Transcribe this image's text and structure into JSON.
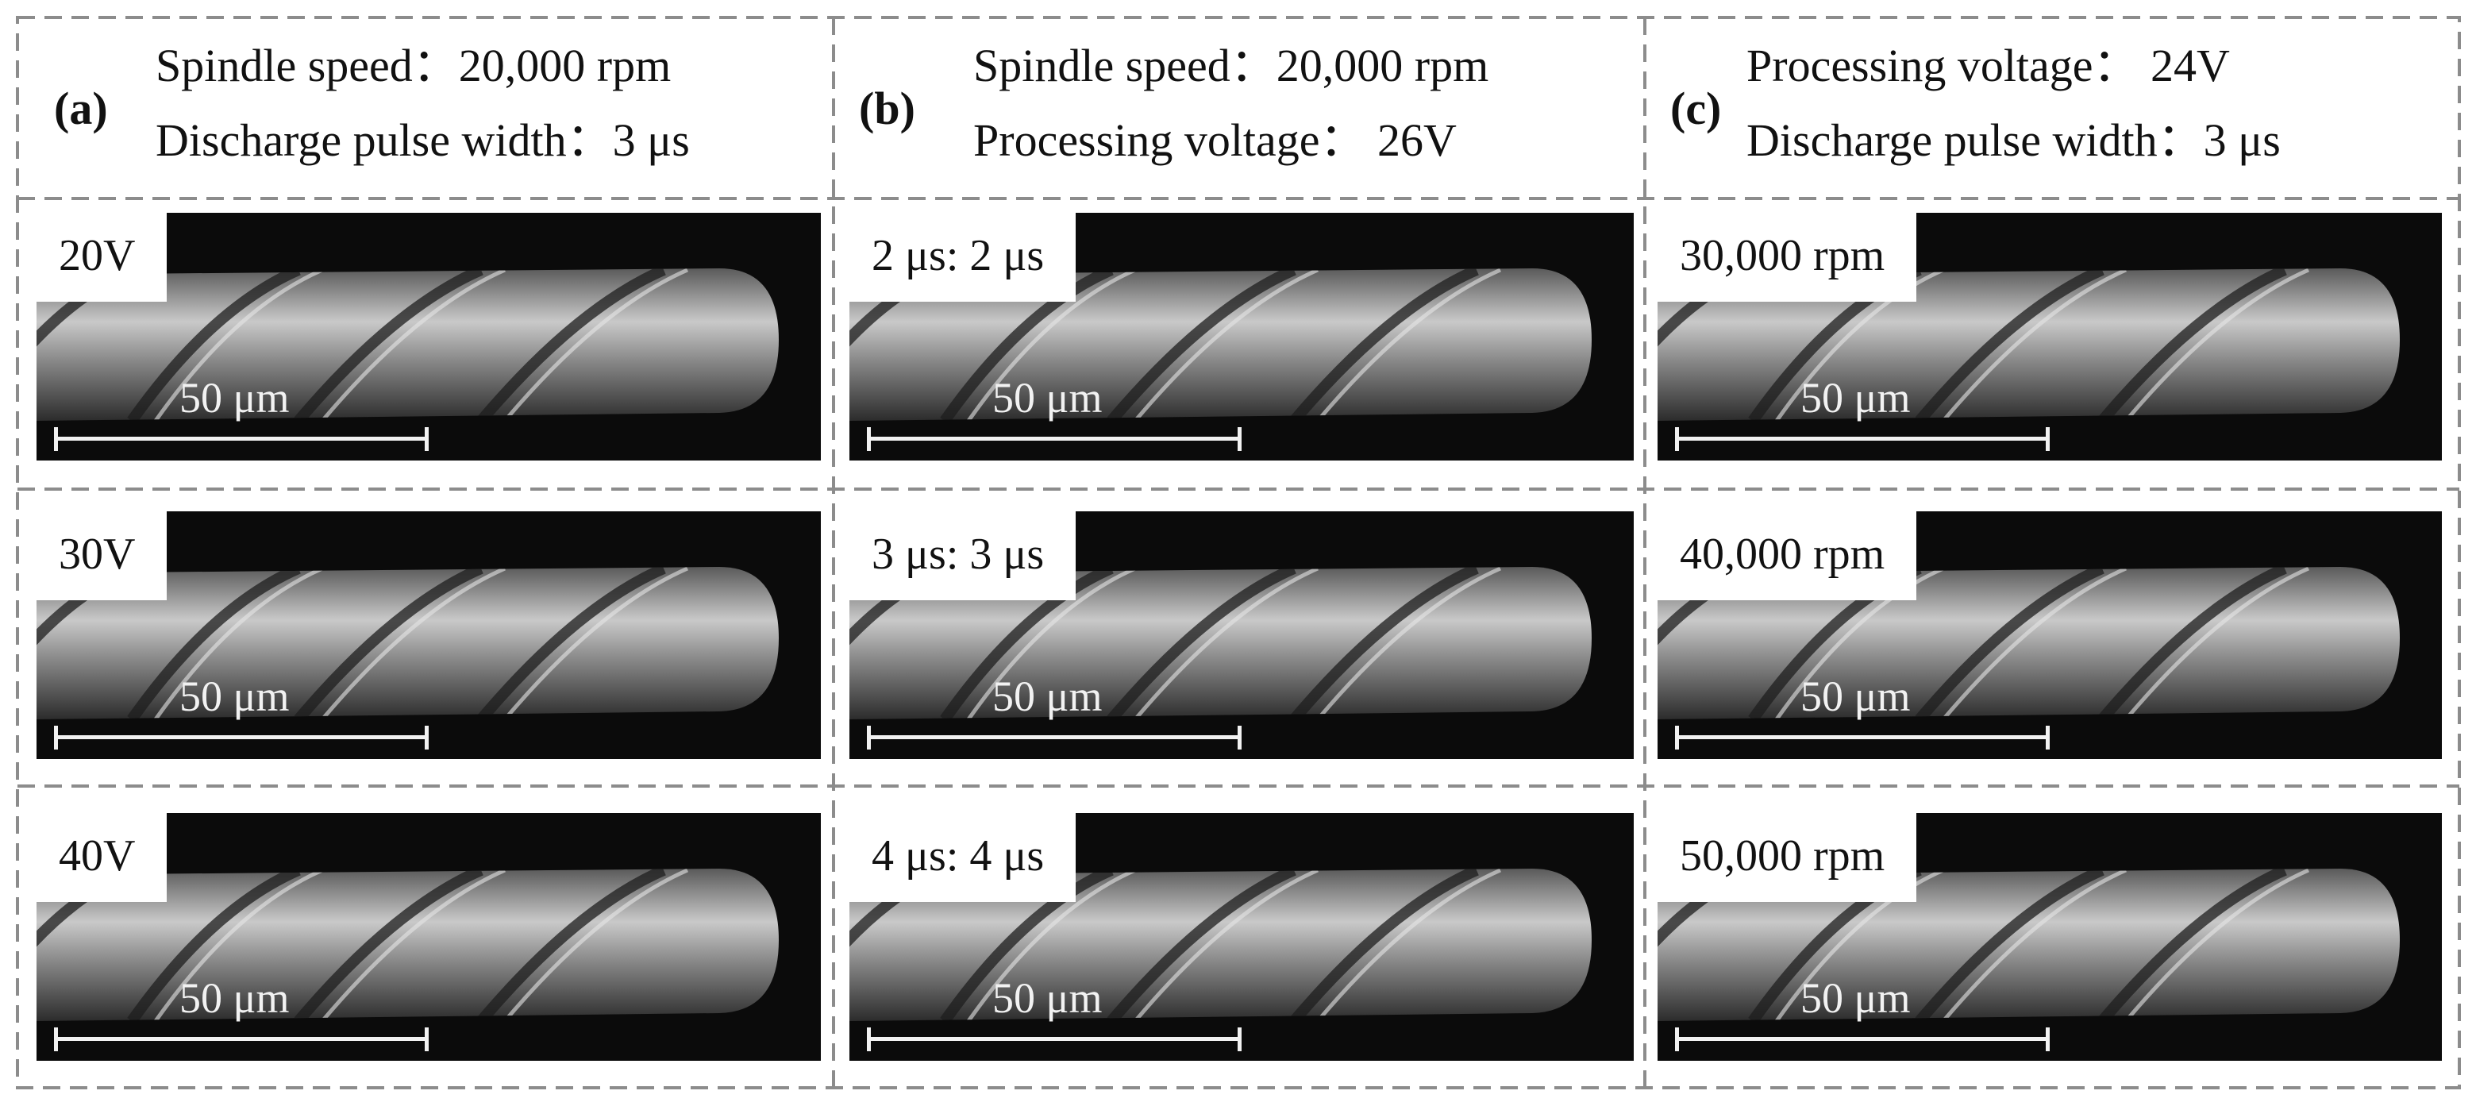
{
  "columns": [
    {
      "label": "(a)",
      "lines": [
        "Spindle speed：20,000 rpm",
        "Discharge pulse width：3 μs"
      ],
      "panels": [
        {
          "tag": "20V",
          "scale": "50 μm"
        },
        {
          "tag": "30V",
          "scale": "50 μm"
        },
        {
          "tag": "40V",
          "scale": "50 μm"
        }
      ]
    },
    {
      "label": "(b)",
      "lines": [
        "Spindle speed：20,000 rpm",
        "Processing voltage： 26V"
      ],
      "panels": [
        {
          "tag": "2 μs: 2 μs",
          "scale": "50 μm"
        },
        {
          "tag": "3 μs: 3 μs",
          "scale": "50 μm"
        },
        {
          "tag": "4 μs: 4 μs",
          "scale": "50 μm"
        }
      ]
    },
    {
      "label": "(c)",
      "lines": [
        "Processing voltage： 24V",
        "Discharge pulse width：3 μs"
      ],
      "panels": [
        {
          "tag": "30,000 rpm",
          "scale": "50 μm"
        },
        {
          "tag": "40,000 rpm",
          "scale": "50 μm"
        },
        {
          "tag": "50,000 rpm",
          "scale": "50 μm"
        }
      ]
    }
  ]
}
